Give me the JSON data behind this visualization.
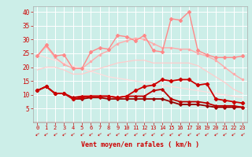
{
  "x": [
    0,
    1,
    2,
    3,
    4,
    5,
    6,
    7,
    8,
    9,
    10,
    11,
    12,
    13,
    14,
    15,
    16,
    17,
    18,
    19,
    20,
    21,
    22,
    23
  ],
  "line_pink_spiky": [
    24.0,
    28.0,
    24.0,
    24.5,
    19.5,
    19.5,
    25.5,
    27.0,
    26.5,
    31.5,
    31.0,
    29.5,
    31.5,
    26.0,
    25.5,
    37.5,
    37.0,
    40.0,
    26.0,
    24.5,
    23.5,
    23.5,
    23.5,
    24.0
  ],
  "line_pink_smooth": [
    24.0,
    27.5,
    23.5,
    21.0,
    19.5,
    19.5,
    22.0,
    24.5,
    26.0,
    28.5,
    29.5,
    30.5,
    30.0,
    28.5,
    27.0,
    27.0,
    26.5,
    26.5,
    25.0,
    24.0,
    22.5,
    20.0,
    17.5,
    15.5
  ],
  "line_pink_lower": [
    19.0,
    20.0,
    20.0,
    19.0,
    17.5,
    17.5,
    18.5,
    19.5,
    20.5,
    21.5,
    22.0,
    22.5,
    22.5,
    21.5,
    21.5,
    21.5,
    21.5,
    21.5,
    20.5,
    18.5,
    16.5,
    14.5,
    12.0,
    10.5
  ],
  "line_linear": [
    24.5,
    23.5,
    22.5,
    21.5,
    20.5,
    19.5,
    18.5,
    17.5,
    16.5,
    16.0,
    15.5,
    15.0,
    14.5,
    14.0,
    13.5,
    13.0,
    12.5,
    12.0,
    11.5,
    11.0,
    10.5,
    10.0,
    9.5,
    9.0
  ],
  "line_red_spiky": [
    11.5,
    13.0,
    10.5,
    10.5,
    8.5,
    9.0,
    9.5,
    9.5,
    9.5,
    9.0,
    9.5,
    11.5,
    13.0,
    13.5,
    15.5,
    15.0,
    15.5,
    15.5,
    13.5,
    14.0,
    8.5,
    8.0,
    7.5,
    7.0
  ],
  "line_red_mid": [
    11.5,
    13.0,
    10.5,
    10.5,
    9.0,
    9.5,
    9.5,
    9.5,
    9.5,
    9.0,
    9.5,
    9.5,
    9.5,
    11.5,
    12.0,
    8.5,
    7.5,
    7.5,
    7.5,
    7.0,
    6.0,
    6.0,
    6.0,
    5.5
  ],
  "line_red_low": [
    11.5,
    13.0,
    10.5,
    10.5,
    8.5,
    8.5,
    9.0,
    9.0,
    8.5,
    8.5,
    8.5,
    8.5,
    8.5,
    8.5,
    8.5,
    7.5,
    6.5,
    6.5,
    6.5,
    6.0,
    5.5,
    5.5,
    5.5,
    5.5
  ],
  "bg_color": "#cceee8",
  "grid_color": "#ffffff",
  "c_pink_spiky": "#ff8888",
  "c_pink_smooth": "#ffaaaa",
  "c_pink_lower": "#ffcccc",
  "c_linear": "#ffdddd",
  "c_red_spiky": "#cc0000",
  "c_red_mid": "#bb0000",
  "c_red_low": "#990000",
  "xlabel": "Vent moyen/en rafales ( km/h )",
  "label_color": "#cc0000",
  "ylim": [
    0,
    42
  ],
  "xlim": [
    -0.5,
    23.5
  ],
  "yticks": [
    5,
    10,
    15,
    20,
    25,
    30,
    35,
    40
  ]
}
